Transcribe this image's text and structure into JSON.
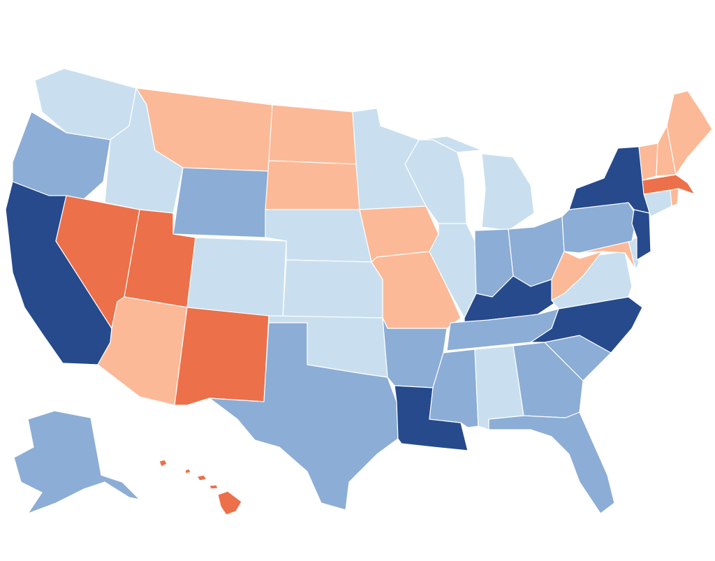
{
  "palette": {
    "dark_blue": "#264a8c",
    "mid_blue": "#8cadd5",
    "light_blue": "#c9dfef",
    "light_orange": "#fcb997",
    "dark_orange": "#ec704a"
  },
  "states": [
    {
      "code": "WA",
      "category": "light_blue"
    },
    {
      "code": "OR",
      "category": "mid_blue"
    },
    {
      "code": "CA",
      "category": "dark_blue"
    },
    {
      "code": "NV",
      "category": "dark_orange"
    },
    {
      "code": "ID",
      "category": "light_blue"
    },
    {
      "code": "MT",
      "category": "light_orange"
    },
    {
      "code": "WY",
      "category": "mid_blue"
    },
    {
      "code": "UT",
      "category": "dark_orange"
    },
    {
      "code": "AZ",
      "category": "light_orange"
    },
    {
      "code": "CO",
      "category": "light_blue"
    },
    {
      "code": "NM",
      "category": "dark_orange"
    },
    {
      "code": "ND",
      "category": "light_orange"
    },
    {
      "code": "SD",
      "category": "light_orange"
    },
    {
      "code": "NE",
      "category": "light_blue"
    },
    {
      "code": "KS",
      "category": "light_blue"
    },
    {
      "code": "OK",
      "category": "light_blue"
    },
    {
      "code": "TX",
      "category": "mid_blue"
    },
    {
      "code": "MN",
      "category": "light_blue"
    },
    {
      "code": "IA",
      "category": "light_orange"
    },
    {
      "code": "MO",
      "category": "light_orange"
    },
    {
      "code": "AR",
      "category": "mid_blue"
    },
    {
      "code": "LA",
      "category": "dark_blue"
    },
    {
      "code": "WI",
      "category": "light_blue"
    },
    {
      "code": "IL",
      "category": "light_blue"
    },
    {
      "code": "MI",
      "category": "light_blue"
    },
    {
      "code": "IN",
      "category": "mid_blue"
    },
    {
      "code": "OH",
      "category": "mid_blue"
    },
    {
      "code": "KY",
      "category": "dark_blue"
    },
    {
      "code": "TN",
      "category": "mid_blue"
    },
    {
      "code": "MS",
      "category": "mid_blue"
    },
    {
      "code": "AL",
      "category": "light_blue"
    },
    {
      "code": "GA",
      "category": "mid_blue"
    },
    {
      "code": "FL",
      "category": "mid_blue"
    },
    {
      "code": "SC",
      "category": "mid_blue"
    },
    {
      "code": "NC",
      "category": "dark_blue"
    },
    {
      "code": "VA",
      "category": "light_blue"
    },
    {
      "code": "WV",
      "category": "light_orange"
    },
    {
      "code": "MD",
      "category": "light_orange"
    },
    {
      "code": "DE",
      "category": "light_blue"
    },
    {
      "code": "PA",
      "category": "mid_blue"
    },
    {
      "code": "NJ",
      "category": "dark_blue"
    },
    {
      "code": "NY",
      "category": "dark_blue"
    },
    {
      "code": "CT",
      "category": "light_blue"
    },
    {
      "code": "RI",
      "category": "light_orange"
    },
    {
      "code": "MA",
      "category": "dark_orange"
    },
    {
      "code": "VT",
      "category": "light_orange"
    },
    {
      "code": "NH",
      "category": "light_orange"
    },
    {
      "code": "ME",
      "category": "light_orange"
    },
    {
      "code": "AK",
      "category": "mid_blue"
    },
    {
      "code": "HI",
      "category": "dark_orange"
    }
  ]
}
